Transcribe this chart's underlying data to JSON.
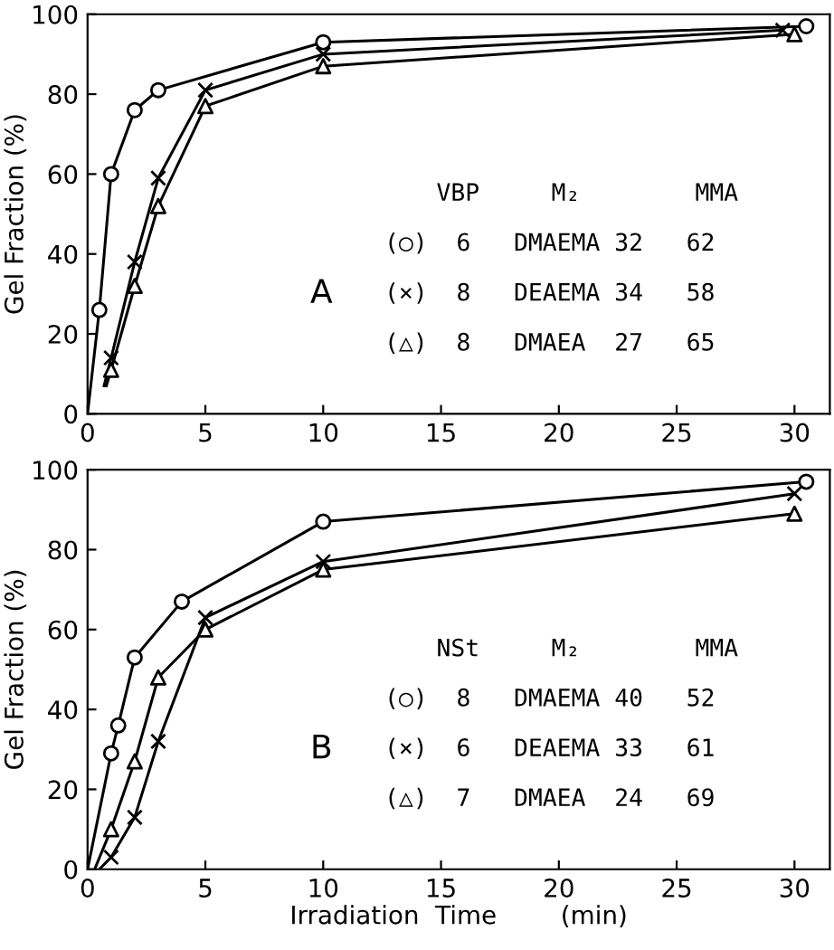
{
  "chart_data": [
    {
      "type": "scatter",
      "ylabel": "Gel Fraction (%)",
      "xlim": [
        0,
        31.5
      ],
      "ylim": [
        0,
        100
      ],
      "xticks": [
        0,
        5,
        10,
        15,
        20,
        25,
        30
      ],
      "yticks": [
        0,
        20,
        40,
        60,
        80,
        100
      ],
      "grid": false,
      "legend": false,
      "annotations": [
        "A",
        "VBP     M₂        MMA",
        "(○)  6   DMAEMA 32   62",
        "(×)  8   DEAEMA 34   58",
        "(△)  8   DMAEA  27   65"
      ],
      "series": [
        {
          "type": "line",
          "marker": "none",
          "line_style": "solid",
          "color": "#000000",
          "x": [
            0,
            0.5,
            1,
            2,
            3,
            10,
            30.5
          ],
          "values": [
            0,
            26,
            60,
            76,
            81,
            93,
            97
          ]
        },
        {
          "type": "line",
          "marker": "none",
          "line_style": "solid",
          "color": "#000000",
          "x": [
            0.7,
            1,
            2,
            3,
            5,
            10,
            29.5
          ],
          "values": [
            7,
            14,
            38,
            59,
            81,
            90,
            96
          ]
        },
        {
          "type": "line",
          "marker": "none",
          "line_style": "solid",
          "color": "#000000",
          "x": [
            0.8,
            1,
            2,
            3,
            5,
            10,
            30
          ],
          "values": [
            7,
            11,
            32,
            52,
            77,
            87,
            95
          ]
        },
        {
          "marker": "circle",
          "color": "#000000",
          "x": [
            0.5,
            1,
            2,
            3,
            10,
            30.5
          ],
          "values": [
            26,
            60,
            76,
            81,
            93,
            97
          ]
        },
        {
          "marker": "cross",
          "color": "#000000",
          "x": [
            1,
            2,
            3,
            5,
            10,
            29.5
          ],
          "values": [
            14,
            38,
            59,
            81,
            90,
            96
          ]
        },
        {
          "marker": "triangle",
          "color": "#000000",
          "x": [
            1,
            2,
            3,
            5,
            10,
            30
          ],
          "values": [
            11,
            32,
            52,
            77,
            87,
            95
          ]
        }
      ]
    },
    {
      "type": "scatter",
      "ylabel": "Gel Fraction (%)",
      "xlabel": "Irradiation  Time        (min)",
      "xlim": [
        0,
        31.5
      ],
      "ylim": [
        0,
        100
      ],
      "xticks": [
        0,
        5,
        10,
        15,
        20,
        25,
        30
      ],
      "yticks": [
        0,
        20,
        40,
        60,
        80,
        100
      ],
      "grid": false,
      "legend": false,
      "annotations": [
        "B",
        "NSt     M₂        MMA",
        "(○)  8   DMAEMA 40   52",
        "(×)  6   DEAEMA 33   61",
        "(△)  7   DMAEA  24   69"
      ],
      "series": [
        {
          "type": "line",
          "marker": "none",
          "line_style": "solid",
          "color": "#000000",
          "x": [
            0,
            1,
            1.3,
            2,
            4,
            10,
            30.5
          ],
          "values": [
            0,
            29,
            36,
            53,
            67,
            87,
            97
          ]
        },
        {
          "type": "line",
          "marker": "none",
          "line_style": "solid",
          "color": "#000000",
          "x": [
            0.5,
            1,
            2,
            3,
            5,
            10,
            30
          ],
          "values": [
            0,
            3,
            13,
            32,
            63,
            77,
            94
          ]
        },
        {
          "type": "line",
          "marker": "none",
          "line_style": "solid",
          "color": "#000000",
          "x": [
            0.3,
            1,
            2,
            3,
            5,
            10,
            30
          ],
          "values": [
            0,
            10,
            27,
            48,
            60,
            75,
            89
          ]
        },
        {
          "marker": "circle",
          "color": "#000000",
          "x": [
            1,
            1.3,
            2,
            4,
            10,
            30.5
          ],
          "values": [
            29,
            36,
            53,
            67,
            87,
            97
          ]
        },
        {
          "marker": "cross",
          "color": "#000000",
          "x": [
            1,
            2,
            3,
            5,
            10,
            30
          ],
          "values": [
            3,
            13,
            32,
            63,
            77,
            94
          ]
        },
        {
          "marker": "triangle",
          "color": "#000000",
          "x": [
            1,
            2,
            3,
            5,
            10,
            30
          ],
          "values": [
            10,
            27,
            48,
            60,
            75,
            89
          ]
        }
      ]
    }
  ]
}
